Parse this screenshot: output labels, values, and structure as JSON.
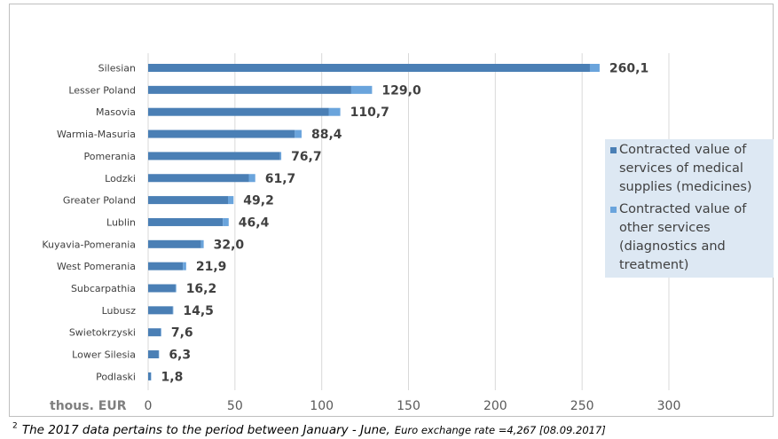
{
  "chart_data": {
    "type": "bar",
    "orientation": "horizontal",
    "stacked": true,
    "categories": [
      "Silesian",
      "Lesser  Poland",
      "Masovia",
      "Warmia-Masuria",
      "Pomerania",
      "Lodzki",
      "Greater  Poland",
      "Lublin",
      "Kuyavia-Pomerania",
      "West Pomerania",
      "Subcarpathia",
      "Lubusz",
      "Swietokrzyski",
      "Lower  Silesia",
      "Podlaski"
    ],
    "series": [
      {
        "name": "Contracted value of services of medical supplies (medicines)",
        "color": "#4a7fb5",
        "values": [
          254.5,
          117.0,
          104.0,
          84.5,
          76.0,
          58.0,
          46.0,
          43.0,
          30.5,
          20.0,
          15.8,
          14.2,
          7.3,
          6.1,
          1.6
        ]
      },
      {
        "name": "Contracted value of other services (diagnostics and treatment)",
        "color": "#6aa4dc",
        "values": [
          5.6,
          12.0,
          6.7,
          3.9,
          0.7,
          3.7,
          3.2,
          3.4,
          1.5,
          1.9,
          0.4,
          0.3,
          0.3,
          0.2,
          0.2
        ]
      }
    ],
    "totals": [
      "260,1",
      "129,0",
      "110,7",
      "88,4",
      "76,7",
      "61,7",
      "49,2",
      "46,4",
      "32,0",
      "21,9",
      "16,2",
      "14,5",
      "7,6",
      "6,3",
      "1,8"
    ],
    "xlabel": "thous. EUR",
    "xticks": [
      "0",
      "50",
      "100",
      "150",
      "200",
      "250",
      "300"
    ],
    "xlim": [
      0,
      300
    ],
    "grid": "vertical",
    "legend_position": "right"
  },
  "footnote": {
    "marker": "2",
    "text": "The 2017 data pertains to the period between January - June,",
    "rate_text": "Euro exchange rate =4,267  [08.09.2017]"
  }
}
